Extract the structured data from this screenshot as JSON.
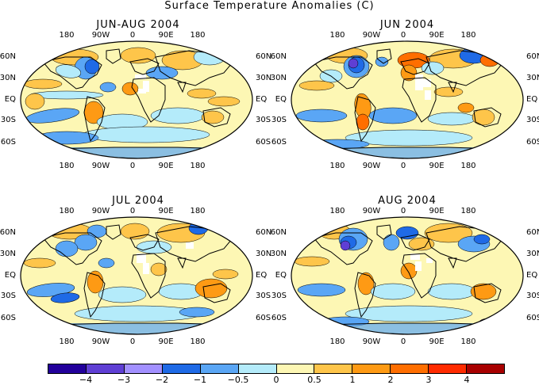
{
  "title": "Surface Temperature Anomalies (C)",
  "panels": [
    {
      "title": "JUN-AUG 2004"
    },
    {
      "title": "JUN 2004"
    },
    {
      "title": "JUL 2004"
    },
    {
      "title": "AUG 2004"
    }
  ],
  "lon_ticks": [
    "180",
    "90W",
    "0",
    "90E",
    "180"
  ],
  "lat_ticks": [
    "60N",
    "30N",
    "EQ",
    "30S",
    "60S"
  ],
  "colorbar": {
    "colors": [
      "#22009b",
      "#5f3fd4",
      "#a290ff",
      "#1f6ae6",
      "#5aa6f5",
      "#b4ebfa",
      "#fdf7b4",
      "#fec54a",
      "#fe9a14",
      "#ff6e00",
      "#ff2b00",
      "#a80000"
    ],
    "labels": [
      "−4",
      "−3",
      "−2",
      "−1",
      "−0.5",
      "0",
      "0.5",
      "1",
      "2",
      "3",
      "4"
    ]
  },
  "palette": {
    "cold_strong": "#5f3fd4",
    "cold": "#1f6ae6",
    "cool": "#5aa6f5",
    "slight_cool": "#b4ebfa",
    "neutral": "#fdf7b4",
    "warm": "#fec54a",
    "hot": "#fe9a14",
    "very_hot": "#ff6e00",
    "missing": "#ffffff"
  }
}
